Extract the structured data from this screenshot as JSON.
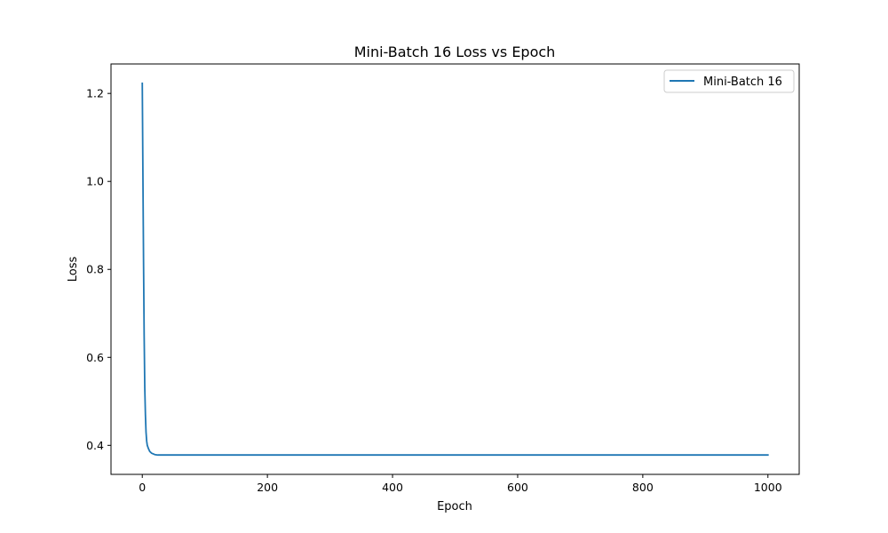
{
  "chart_data": {
    "type": "line",
    "title": "Mini-Batch 16 Loss vs Epoch",
    "xlabel": "Epoch",
    "ylabel": "Loss",
    "xlim": [
      -50,
      1050
    ],
    "ylim": [
      0.334,
      1.267
    ],
    "xticks": [
      0,
      200,
      400,
      600,
      800,
      1000
    ],
    "xtick_labels": [
      "0",
      "200",
      "400",
      "600",
      "800",
      "1000"
    ],
    "yticks": [
      0.4,
      0.6,
      0.8,
      1.0,
      1.2
    ],
    "ytick_labels": [
      "0.4",
      "0.6",
      "0.8",
      "1.0",
      "1.2"
    ],
    "grid": false,
    "legend": {
      "placement": "top-right",
      "entries": [
        "Mini-Batch 16"
      ]
    },
    "series": [
      {
        "name": "Mini-Batch 16",
        "color": "#1f77b4",
        "points": [
          [
            0,
            1.223
          ],
          [
            1,
            1.02
          ],
          [
            2,
            0.82
          ],
          [
            3,
            0.65
          ],
          [
            4,
            0.53
          ],
          [
            5,
            0.47
          ],
          [
            6,
            0.43
          ],
          [
            7,
            0.41
          ],
          [
            8,
            0.4
          ],
          [
            10,
            0.392
          ],
          [
            12,
            0.386
          ],
          [
            15,
            0.382
          ],
          [
            20,
            0.379
          ],
          [
            25,
            0.378
          ],
          [
            30,
            0.378
          ],
          [
            100,
            0.378
          ],
          [
            200,
            0.378
          ],
          [
            400,
            0.378
          ],
          [
            600,
            0.378
          ],
          [
            800,
            0.378
          ],
          [
            1000,
            0.378
          ]
        ]
      }
    ]
  }
}
